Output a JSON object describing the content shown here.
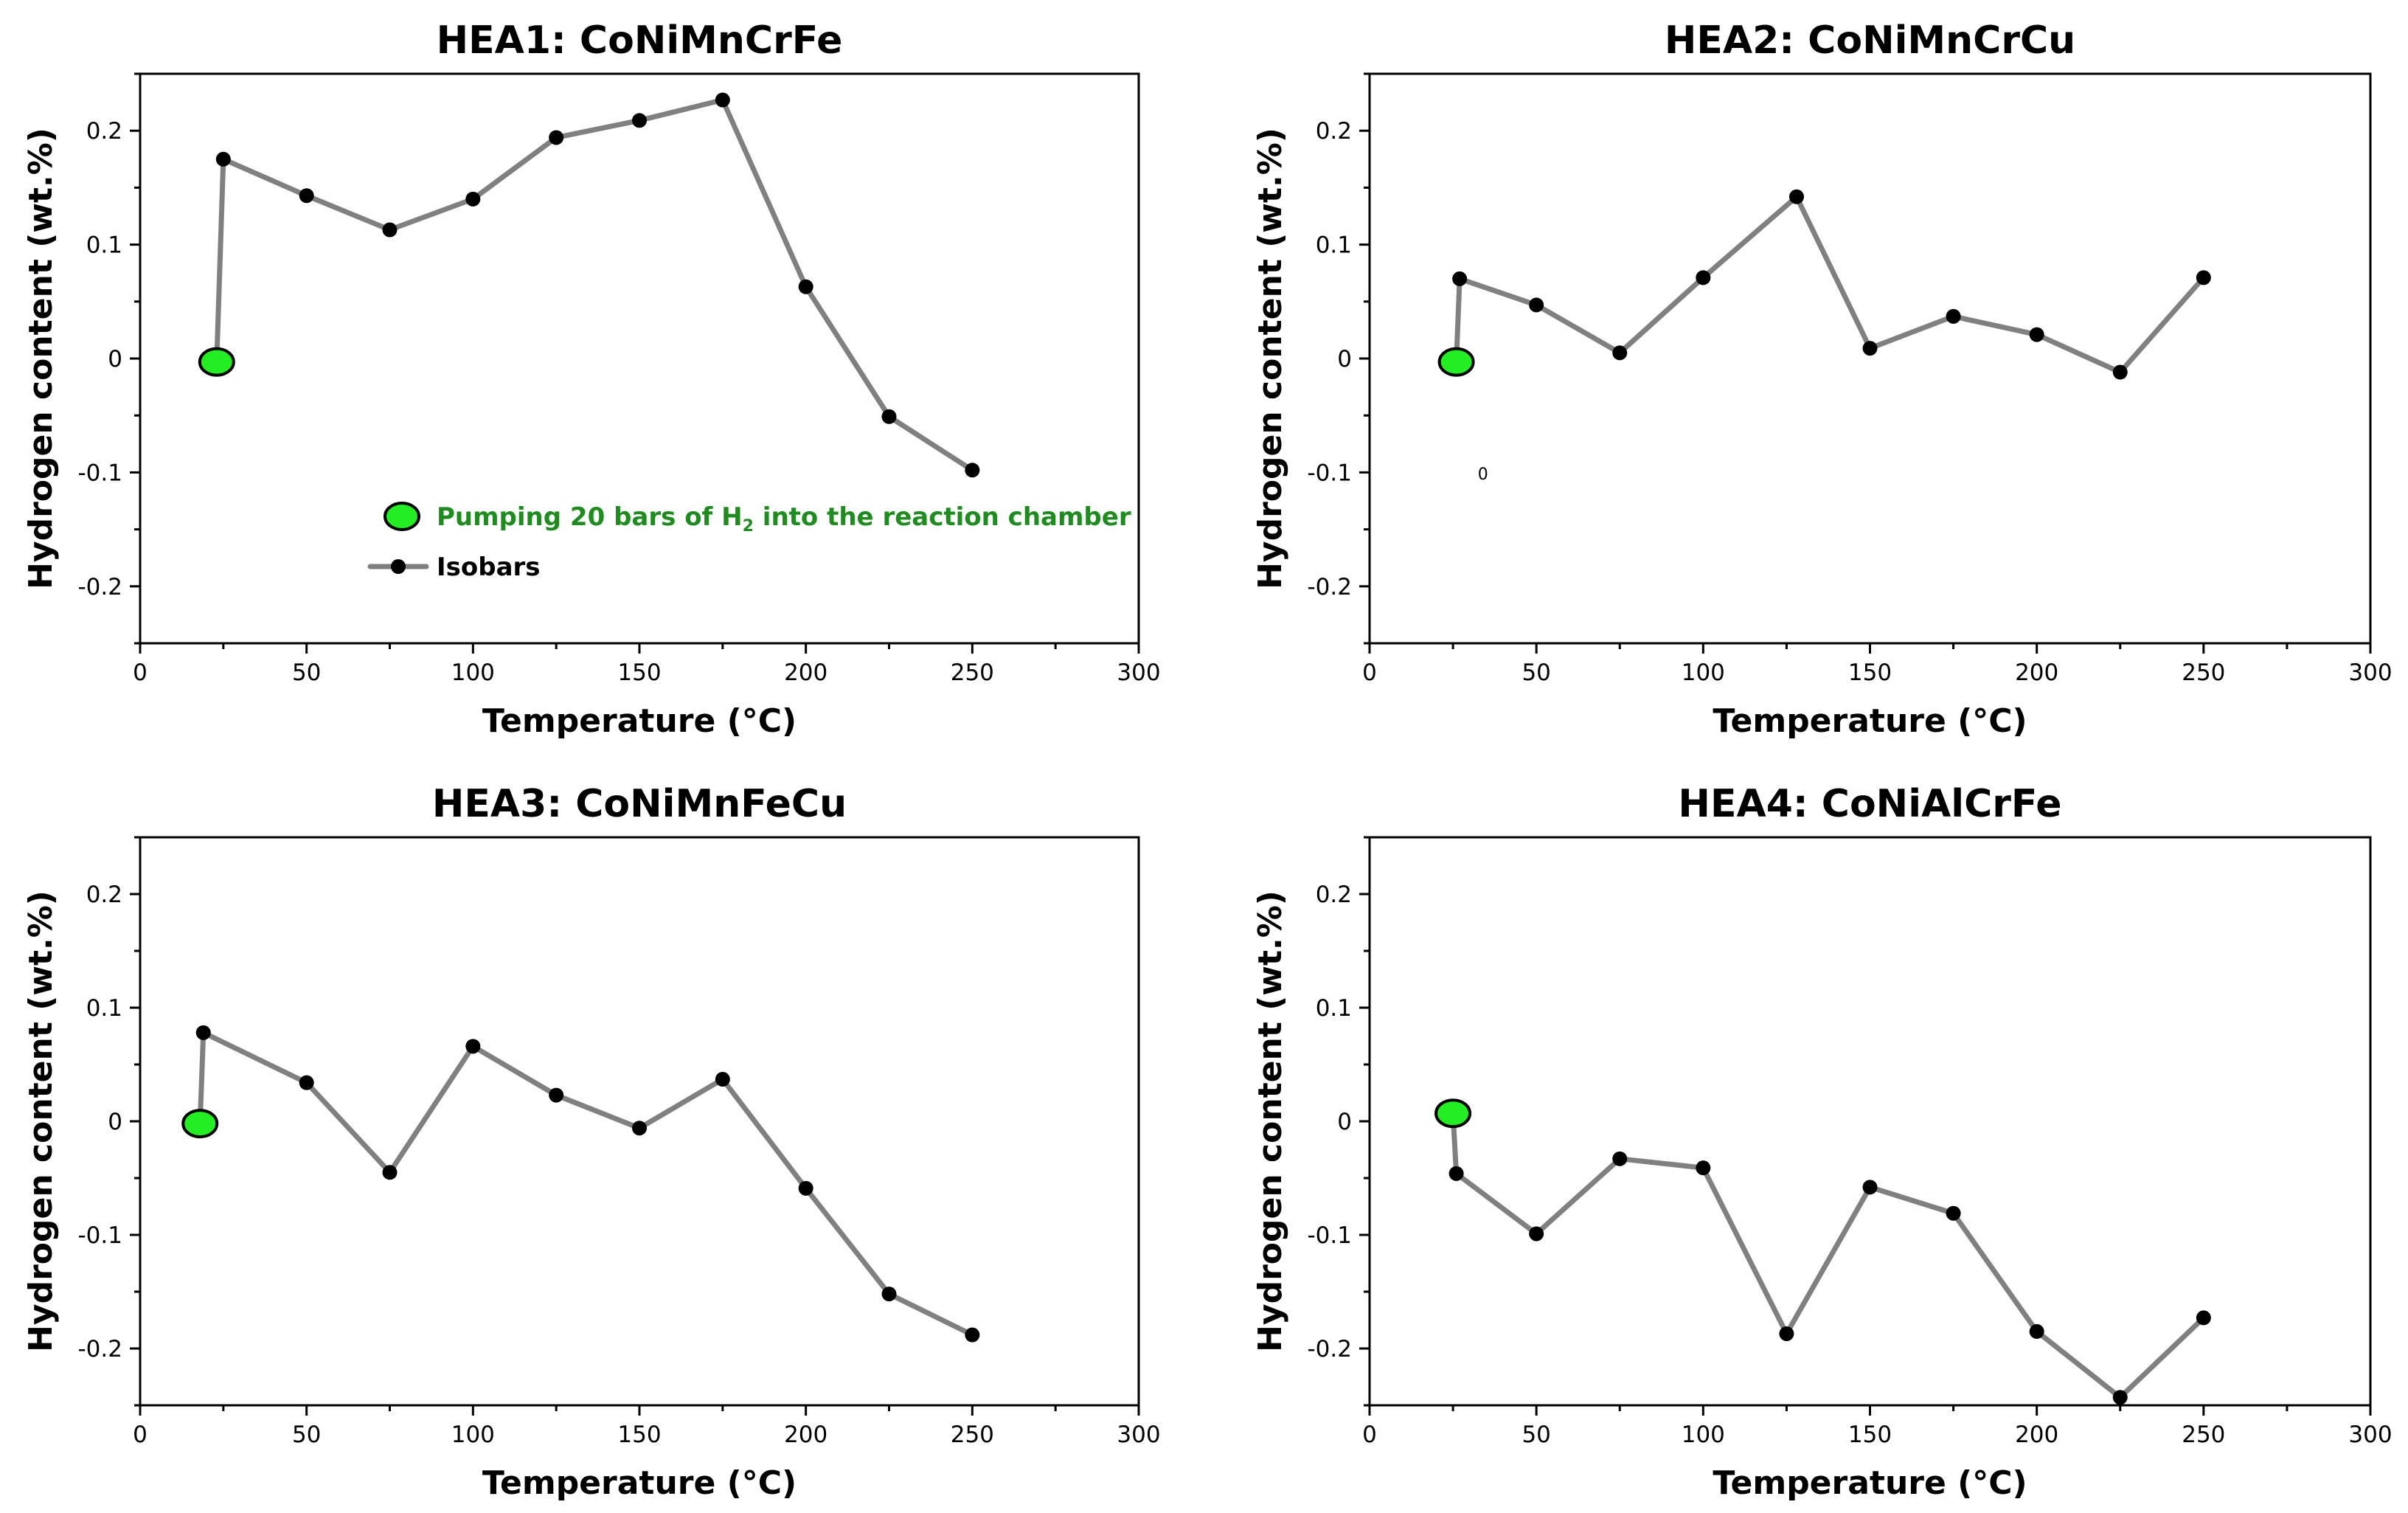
{
  "colors": {
    "line": "#808080",
    "point": "#000000",
    "start_marker": "#22ee22",
    "legend_pump_text": "#1e8c1e"
  },
  "legend": {
    "pump_text_before": "Pumping 20 bars of H",
    "pump_subscript": "2",
    "pump_text_after": " into the reaction chamber",
    "isobars": "Isobars"
  },
  "chart_data": [
    {
      "type": "line",
      "title": "HEA1: CoNiMnCrFe",
      "xlabel": "Temperature (°C)",
      "ylabel": "Hydrogen content (wt.%)",
      "xlim": [
        0,
        300
      ],
      "ylim": [
        -0.25,
        0.25
      ],
      "xticks": [
        0,
        50,
        100,
        150,
        200,
        250,
        300
      ],
      "yticks": [
        -0.2,
        -0.1,
        0,
        0.1,
        0.2
      ],
      "xtick_labels": [
        "0",
        "50",
        "100",
        "150",
        "200",
        "250",
        "300"
      ],
      "ytick_labels": [
        "-0.2",
        "-0.1",
        "0",
        "0.1",
        "0.2"
      ],
      "start_point": {
        "label": "Pumping 20 bars of H2 into the reaction chamber",
        "x": 23,
        "y": -0.003
      },
      "series": [
        {
          "name": "Isobars",
          "x": [
            25,
            50,
            75,
            100,
            125,
            150,
            175,
            200,
            225,
            250
          ],
          "y": [
            0.175,
            0.143,
            0.113,
            0.14,
            0.194,
            0.209,
            0.227,
            0.063,
            -0.051,
            -0.098
          ]
        }
      ],
      "legend": "inside, lower-left"
    },
    {
      "type": "line",
      "title": "HEA2: CoNiMnCrCu",
      "xlabel": "Temperature (°C)",
      "ylabel": "Hydrogen content (wt.%)",
      "xlim": [
        0,
        300
      ],
      "ylim": [
        -0.25,
        0.25
      ],
      "xticks": [
        0,
        50,
        100,
        150,
        200,
        250,
        300
      ],
      "yticks": [
        -0.2,
        -0.1,
        0,
        0.1,
        0.2
      ],
      "xtick_labels": [
        "0",
        "50",
        "100",
        "150",
        "200",
        "250",
        "300"
      ],
      "ytick_labels": [
        "-0.2",
        "-0.1",
        "0",
        "0.1",
        "0.2"
      ],
      "start_point": {
        "label": "Pumping 20 bars of H2 into the reaction chamber",
        "x": 26,
        "y": -0.003
      },
      "series": [
        {
          "name": "Isobars",
          "x": [
            27,
            50,
            75,
            100,
            128,
            150,
            175,
            200,
            225,
            250
          ],
          "y": [
            0.07,
            0.047,
            0.005,
            0.071,
            0.142,
            0.009,
            0.037,
            0.021,
            -0.012,
            0.071
          ]
        }
      ],
      "annotation": {
        "text": "0",
        "x": 34,
        "y": -0.101
      }
    },
    {
      "type": "line",
      "title": "HEA3: CoNiMnFeCu",
      "xlabel": "Temperature (°C)",
      "ylabel": "Hydrogen content (wt.%)",
      "xlim": [
        0,
        300
      ],
      "ylim": [
        -0.25,
        0.25
      ],
      "xticks": [
        0,
        50,
        100,
        150,
        200,
        250,
        300
      ],
      "yticks": [
        -0.2,
        -0.1,
        0,
        0.1,
        0.2
      ],
      "xtick_labels": [
        "0",
        "50",
        "100",
        "150",
        "200",
        "250",
        "300"
      ],
      "ytick_labels": [
        "-0.2",
        "-0.1",
        "0",
        "0.1",
        "0.2"
      ],
      "start_point": {
        "label": "Pumping 20 bars of H2 into the reaction chamber",
        "x": 18,
        "y": -0.002
      },
      "series": [
        {
          "name": "Isobars",
          "x": [
            19,
            50,
            75,
            100,
            125,
            150,
            175,
            200,
            225,
            250
          ],
          "y": [
            0.078,
            0.034,
            -0.045,
            0.066,
            0.023,
            -0.006,
            0.037,
            -0.059,
            -0.152,
            -0.188
          ]
        }
      ]
    },
    {
      "type": "line",
      "title": "HEA4: CoNiAlCrFe",
      "xlabel": "Temperature (°C)",
      "ylabel": "Hydrogen content (wt.%)",
      "xlim": [
        0,
        300
      ],
      "ylim": [
        -0.25,
        0.25
      ],
      "xticks": [
        0,
        50,
        100,
        150,
        200,
        250,
        300
      ],
      "yticks": [
        -0.2,
        -0.1,
        0,
        0.1,
        0.2
      ],
      "xtick_labels": [
        "0",
        "50",
        "100",
        "150",
        "200",
        "250",
        "300"
      ],
      "ytick_labels": [
        "-0.2",
        "-0.1",
        "0",
        "0.1",
        "0.2"
      ],
      "start_point": {
        "label": "Pumping 20 bars of H2 into the reaction chamber",
        "x": 25,
        "y": 0.007
      },
      "series": [
        {
          "name": "Isobars",
          "x": [
            26,
            50,
            75,
            100,
            125,
            150,
            175,
            200,
            225,
            250
          ],
          "y": [
            -0.046,
            -0.099,
            -0.033,
            -0.041,
            -0.187,
            -0.058,
            -0.081,
            -0.185,
            -0.243,
            -0.173
          ]
        }
      ]
    }
  ]
}
